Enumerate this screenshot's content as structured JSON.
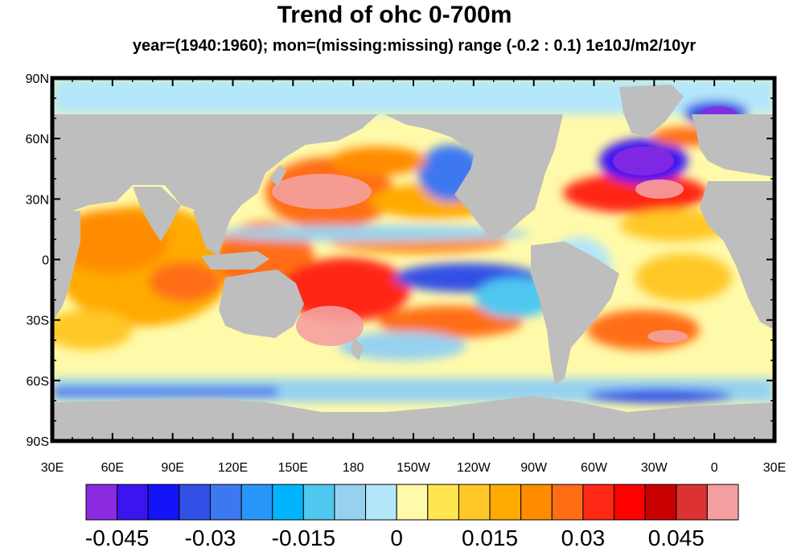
{
  "chart_data": {
    "type": "heatmap",
    "title": "Trend of ohc 0-700m",
    "subtitle": "year=(1940:1960); mon=(missing:missing) range (-0.2 : 0.1) 1e10J/m2/10yr",
    "x_ticks": [
      "30E",
      "60E",
      "90E",
      "120E",
      "150E",
      "180",
      "150W",
      "120W",
      "90W",
      "60W",
      "30W",
      "0",
      "30E"
    ],
    "y_ticks": [
      "90N",
      "60N",
      "30N",
      "0",
      "30S",
      "60S",
      "90S"
    ],
    "xlim": [
      30,
      390
    ],
    "ylim": [
      -90,
      90
    ],
    "land_color": "#bebebe",
    "colorbar": {
      "colors": [
        "#8a2be2",
        "#3c14f0",
        "#1414fa",
        "#3250e6",
        "#3c78f0",
        "#2896fa",
        "#00b4ff",
        "#50c8f0",
        "#96d2f0",
        "#b4e6fa",
        "#fffaaa",
        "#ffe650",
        "#ffc828",
        "#ffaa00",
        "#ff8c00",
        "#ff6e14",
        "#ff2814",
        "#ff0000",
        "#c80000",
        "#dc3232",
        "#f5a0a0"
      ],
      "tick_labels": [
        "-0.045",
        "-0.03",
        "-0.015",
        "0",
        "0.015",
        "0.03",
        "0.045"
      ],
      "tick_values": [
        -0.045,
        -0.03,
        -0.015,
        0,
        0.015,
        0.03,
        0.045
      ]
    }
  }
}
